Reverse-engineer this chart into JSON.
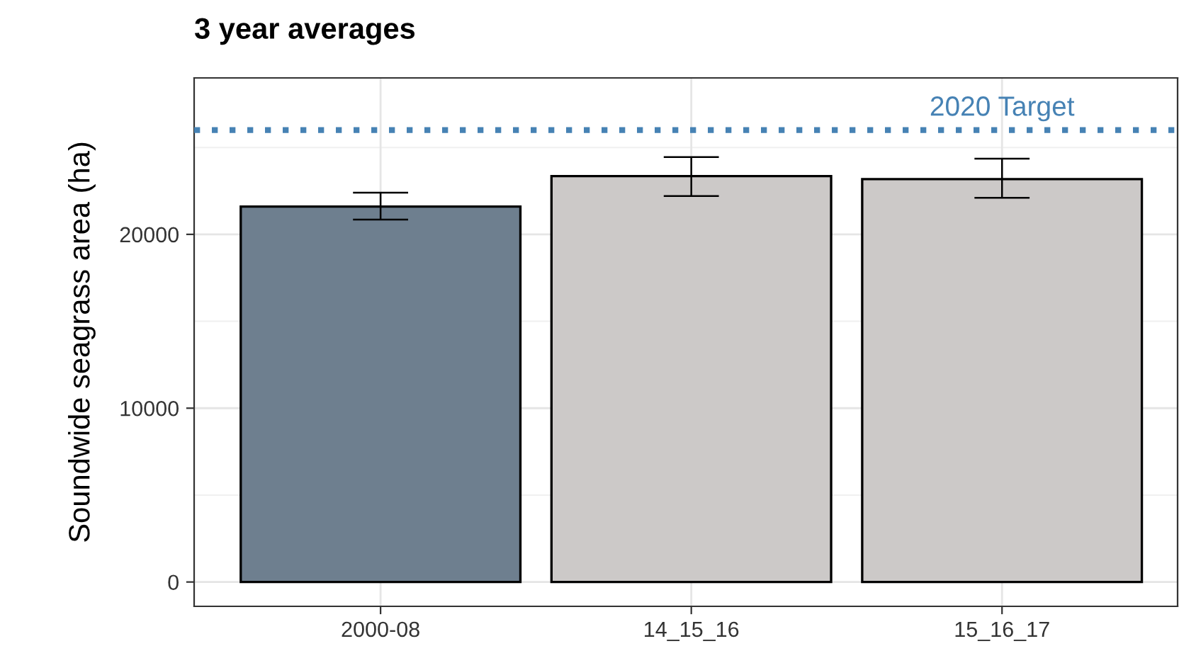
{
  "chart_data": {
    "type": "bar",
    "title": "3 year averages",
    "ylabel": "Soundwide seagrass area (ha)",
    "categories": [
      "2000-08",
      "14_15_16",
      "15_16_17"
    ],
    "values": [
      21600,
      23350,
      23180
    ],
    "colors": [
      "#6e7f8f",
      "#ccc9c8",
      "#ccc9c8"
    ],
    "errors": [
      [
        20850,
        22400
      ],
      [
        22200,
        24450
      ],
      [
        22100,
        24350
      ]
    ],
    "ylim": [
      -1400,
      29000
    ],
    "yticks": [
      0,
      10000,
      20000
    ],
    "grid": true,
    "ref_lines": [
      {
        "axis": "y",
        "value": 26000,
        "label": "2020 Target",
        "color": "#4682b4",
        "line_style": "dotted"
      }
    ]
  }
}
